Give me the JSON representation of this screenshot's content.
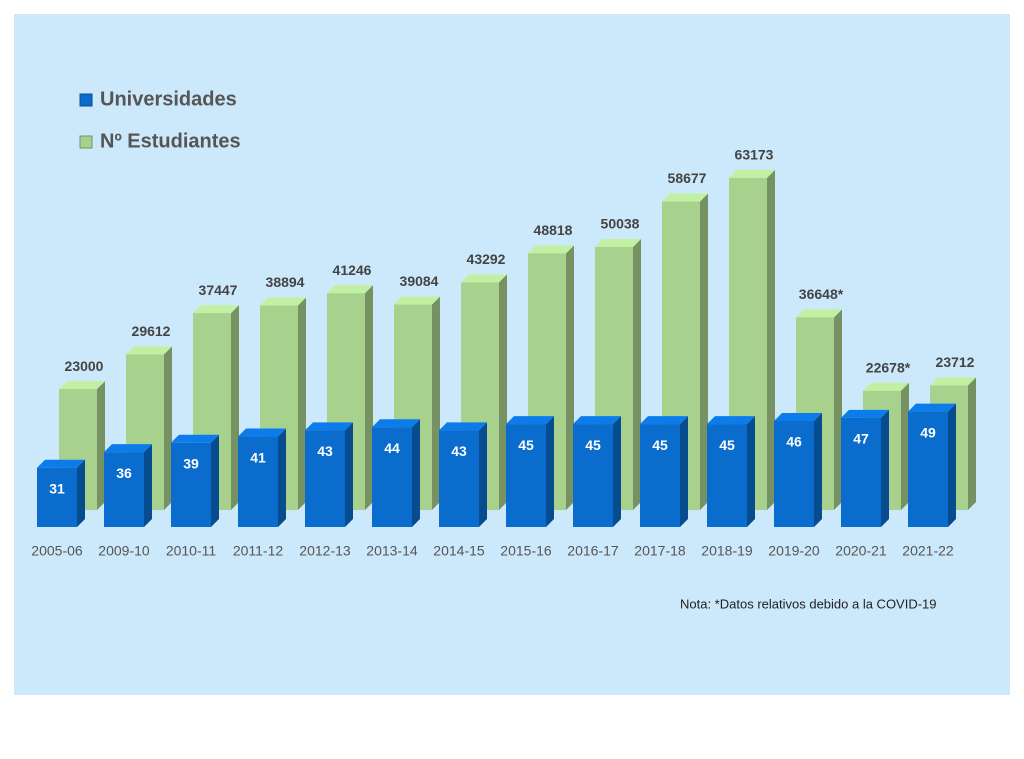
{
  "chart_data": {
    "type": "bar3d",
    "categories": [
      "2005-06",
      "2009-10",
      "2010-11",
      "2011-12",
      "2012-13",
      "2013-14",
      "2014-15",
      "2015-16",
      "2016-17",
      "2017-18",
      "2018-19",
      "2019-20",
      "2020-21",
      "2021-22"
    ],
    "series": [
      {
        "name": "Nº Estudiantes",
        "color": "#a9d18e",
        "values": [
          23000,
          29612,
          37447,
          38894,
          41246,
          39084,
          43292,
          48818,
          50038,
          58677,
          63173,
          36648,
          22678,
          23712
        ],
        "value_labels": [
          "23000",
          "29612",
          "37447",
          "38894",
          "41246",
          "39084",
          "43292",
          "48818",
          "50038",
          "58677",
          "63173",
          "36648*",
          "22678*",
          "23712"
        ]
      },
      {
        "name": "Universidades",
        "color": "#0a6ccc",
        "axis": "y2",
        "values": [
          31,
          36,
          39,
          41,
          43,
          44,
          43,
          45,
          45,
          45,
          45,
          46,
          47,
          49
        ]
      }
    ],
    "ylim": [
      0,
      70000
    ],
    "y2lim": [
      12,
      130
    ],
    "note": "Nota: *Datos relativos debido a la COVID-19"
  }
}
